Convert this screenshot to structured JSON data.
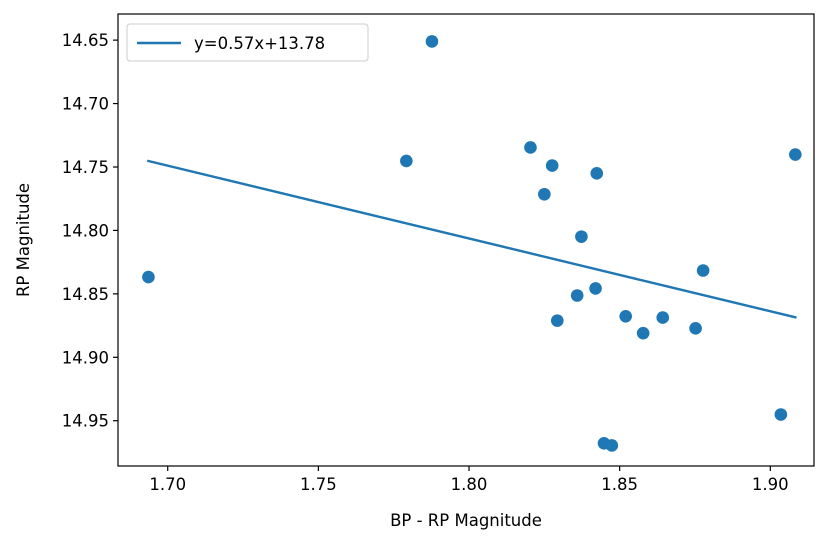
{
  "chart_data": {
    "type": "scatter",
    "xlabel": "BP - RP Magnitude",
    "ylabel": "RP Magnitude",
    "xlim": [
      1.6835,
      1.9145
    ],
    "ylim": [
      14.9857,
      14.6294
    ],
    "y_inverted": true,
    "x_ticks": [
      "1.70",
      "1.75",
      "1.80",
      "1.85",
      "1.90"
    ],
    "y_ticks": [
      "14.65",
      "14.70",
      "14.75",
      "14.80",
      "14.85",
      "14.90",
      "14.95"
    ],
    "legend_position": "top-left",
    "grid": false,
    "color": "#1f77b4",
    "points": [
      {
        "x": 1.6936,
        "y": 14.8368
      },
      {
        "x": 1.7792,
        "y": 14.7452
      },
      {
        "x": 1.7877,
        "y": 14.651
      },
      {
        "x": 1.8204,
        "y": 14.7346
      },
      {
        "x": 1.825,
        "y": 14.7715
      },
      {
        "x": 1.8276,
        "y": 14.7489
      },
      {
        "x": 1.8293,
        "y": 14.8711
      },
      {
        "x": 1.8359,
        "y": 14.8513
      },
      {
        "x": 1.8373,
        "y": 14.8049
      },
      {
        "x": 1.842,
        "y": 14.8457
      },
      {
        "x": 1.8424,
        "y": 14.755
      },
      {
        "x": 1.8448,
        "y": 14.9678
      },
      {
        "x": 1.8474,
        "y": 14.9695
      },
      {
        "x": 1.852,
        "y": 14.8677
      },
      {
        "x": 1.8578,
        "y": 14.881
      },
      {
        "x": 1.8643,
        "y": 14.8687
      },
      {
        "x": 1.8752,
        "y": 14.8772
      },
      {
        "x": 1.8777,
        "y": 14.8316
      },
      {
        "x": 1.9035,
        "y": 14.9451
      },
      {
        "x": 1.9083,
        "y": 14.7402
      }
    ],
    "fit_line": {
      "name": "y=0.57x+13.78",
      "x": [
        1.6936,
        1.9083
      ],
      "y": [
        14.7453,
        14.8685
      ]
    }
  }
}
